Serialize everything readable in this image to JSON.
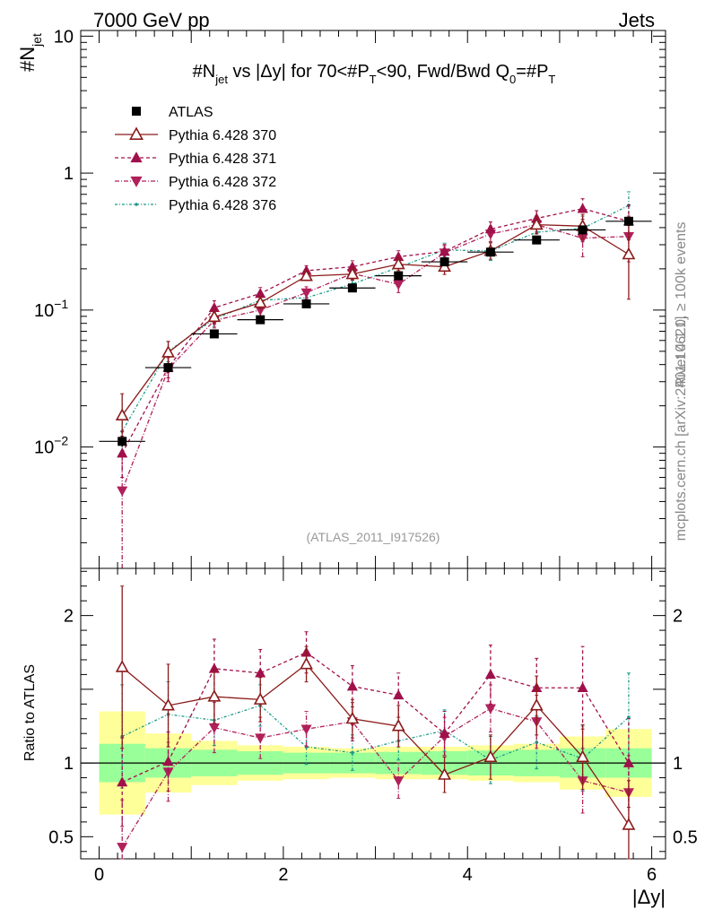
{
  "header": {
    "left": "7000 GeV pp",
    "right": "Jets"
  },
  "side_labels": {
    "rivet": "Rivet 4.1.0, ≥ 100k events",
    "mcplots": "mcplots.cern.ch [arXiv:2401.10621]"
  },
  "watermark": "(ATLAS_2011_I917526)",
  "colors": {
    "atlas": "#000000",
    "p370": "#8b1a1a",
    "p371": "#a0104a",
    "p372": "#b0205a",
    "p376": "#1a9a8a",
    "band_inner": "#99ff99",
    "band_outer": "#ffff99"
  },
  "chart_data": [
    {
      "type": "scatter",
      "title": "#N_jet vs |Δy| for 70<#P_T<90, Fwd/Bwd Q0=#P_T",
      "title_parts": {
        "n": "#N",
        "n_sub": "jet",
        "mid": " vs |Δy| for 70<#",
        "p": "P",
        "p_sub": "T",
        "tail": "<90, Fwd/Bwd Q",
        "q_sub": "0",
        "eq": "=#",
        "p2": "P",
        "p2_sub": "T"
      },
      "ylabel": "#N_jet",
      "ylabel_parts": {
        "main": "#N",
        "sub": "jet"
      },
      "yscale": "log",
      "ylim": [
        0.0013,
        11
      ],
      "xlim": [
        -0.2,
        6.15
      ],
      "y_ticks": [
        {
          "v": 10,
          "label": "10"
        },
        {
          "v": 1,
          "label": "1"
        },
        {
          "v": 0.1,
          "label": "10",
          "exp": "−1"
        },
        {
          "v": 0.01,
          "label": "10",
          "exp": "−2"
        }
      ],
      "x": [
        0.25,
        0.75,
        1.25,
        1.75,
        2.25,
        2.75,
        3.25,
        3.75,
        4.25,
        4.75,
        5.25,
        5.75
      ],
      "xerr": 0.25,
      "legend_position": "top-left",
      "series": [
        {
          "name": "ATLAS",
          "key": "atlas",
          "marker": "square",
          "dash": "none",
          "values": [
            0.011,
            0.038,
            0.067,
            0.085,
            0.111,
            0.145,
            0.178,
            0.225,
            0.265,
            0.325,
            0.385,
            0.445
          ],
          "err_lo": [
            0.001,
            0.003,
            0.004,
            0.005,
            0.006,
            0.007,
            0.009,
            0.011,
            0.013,
            0.016,
            0.02,
            0.025
          ],
          "err_hi": [
            0.001,
            0.003,
            0.004,
            0.005,
            0.006,
            0.007,
            0.009,
            0.011,
            0.013,
            0.016,
            0.02,
            0.025
          ]
        },
        {
          "name": "Pythia 6.428 370",
          "key": "p370",
          "marker": "triangle-up-open",
          "dash": "none",
          "values": [
            0.017,
            0.049,
            0.089,
            0.113,
            0.177,
            0.183,
            0.216,
            0.207,
            0.27,
            0.42,
            0.41,
            0.255
          ],
          "err_lo": [
            0.005,
            0.009,
            0.01,
            0.011,
            0.013,
            0.018,
            0.022,
            0.025,
            0.035,
            0.06,
            0.08,
            0.135
          ],
          "err_hi": [
            0.0075,
            0.01,
            0.011,
            0.012,
            0.014,
            0.02,
            0.024,
            0.028,
            0.04,
            0.065,
            0.09,
            0.16
          ]
        },
        {
          "name": "Pythia 6.428 371",
          "key": "p371",
          "marker": "triangle-up",
          "dash": "4,3",
          "values": [
            0.009,
            0.038,
            0.104,
            0.132,
            0.194,
            0.207,
            0.245,
            0.268,
            0.39,
            0.467,
            0.55,
            0.445
          ],
          "err_lo": [
            0.003,
            0.006,
            0.012,
            0.013,
            0.016,
            0.02,
            0.024,
            0.03,
            0.045,
            0.06,
            0.09,
            0.12
          ],
          "err_hi": [
            0.004,
            0.007,
            0.013,
            0.014,
            0.017,
            0.022,
            0.026,
            0.033,
            0.05,
            0.065,
            0.1,
            0.14
          ]
        },
        {
          "name": "Pythia 6.428 372",
          "key": "p372",
          "marker": "triangle-down",
          "dash": "5,2,1,2",
          "values": [
            0.0048,
            0.037,
            0.084,
            0.1,
            0.134,
            0.185,
            0.154,
            0.262,
            0.36,
            0.42,
            0.335,
            0.345
          ],
          "err_lo": [
            0.0035,
            0.007,
            0.01,
            0.011,
            0.013,
            0.018,
            0.02,
            0.03,
            0.045,
            0.06,
            0.09,
            0.12
          ],
          "err_hi": [
            0.004,
            0.008,
            0.011,
            0.012,
            0.014,
            0.02,
            0.022,
            0.033,
            0.05,
            0.065,
            0.1,
            0.14
          ]
        },
        {
          "name": "Pythia 6.428 376",
          "key": "p376",
          "marker": "dot",
          "dash": "3,2,1,2",
          "values": [
            0.013,
            0.05,
            0.086,
            0.118,
            0.123,
            0.155,
            0.205,
            0.275,
            0.27,
            0.37,
            0.395,
            0.58
          ],
          "err_lo": [
            0.004,
            0.008,
            0.01,
            0.011,
            0.012,
            0.016,
            0.022,
            0.03,
            0.04,
            0.055,
            0.08,
            0.13
          ],
          "err_hi": [
            0.005,
            0.009,
            0.011,
            0.012,
            0.013,
            0.018,
            0.024,
            0.033,
            0.045,
            0.06,
            0.09,
            0.15
          ]
        }
      ]
    },
    {
      "type": "scatter",
      "title": "",
      "ylabel": "Ratio to ATLAS",
      "xlabel": "|Δy|",
      "yscale": "linear",
      "ylim": [
        0.35,
        2.32
      ],
      "xlim": [
        -0.2,
        6.15
      ],
      "y_ticks": [
        {
          "v": 2,
          "label": "2"
        },
        {
          "v": 1.5,
          "label": ""
        },
        {
          "v": 1,
          "label": "1"
        },
        {
          "v": 0.5,
          "label": "0.5"
        }
      ],
      "x_ticks": [
        {
          "v": 0,
          "label": "0"
        },
        {
          "v": 2,
          "label": "2"
        },
        {
          "v": 4,
          "label": "4"
        },
        {
          "v": 6,
          "label": "6"
        }
      ],
      "x": [
        0.25,
        0.75,
        1.25,
        1.75,
        2.25,
        2.75,
        3.25,
        3.75,
        4.25,
        4.75,
        5.25,
        5.75
      ],
      "xerr": 0.25,
      "bands": {
        "inner": [
          0.13,
          0.1,
          0.09,
          0.08,
          0.07,
          0.07,
          0.075,
          0.08,
          0.085,
          0.09,
          0.1,
          0.1
        ],
        "outer": [
          0.35,
          0.2,
          0.15,
          0.12,
          0.11,
          0.1,
          0.11,
          0.11,
          0.12,
          0.13,
          0.18,
          0.23
        ]
      },
      "series": [
        {
          "name": "Pythia 6.428 370",
          "key": "p370",
          "marker": "triangle-up-open",
          "dash": "none",
          "values": [
            1.65,
            1.39,
            1.45,
            1.43,
            1.67,
            1.3,
            1.25,
            0.92,
            1.04,
            1.39,
            1.04,
            0.58
          ],
          "err_lo": [
            0.55,
            0.28,
            0.18,
            0.15,
            0.12,
            0.13,
            0.14,
            0.12,
            0.15,
            0.2,
            0.22,
            0.3
          ],
          "err_hi": [
            0.55,
            0.28,
            0.18,
            0.15,
            0.12,
            0.13,
            0.14,
            0.12,
            0.15,
            0.2,
            0.22,
            0.3
          ]
        },
        {
          "name": "Pythia 6.428 371",
          "key": "p371",
          "marker": "triangle-up",
          "dash": "4,3",
          "values": [
            0.87,
            1.01,
            1.64,
            1.61,
            1.75,
            1.52,
            1.46,
            1.2,
            1.6,
            1.51,
            1.51,
            1.0
          ],
          "err_lo": [
            0.3,
            0.2,
            0.2,
            0.16,
            0.14,
            0.14,
            0.15,
            0.15,
            0.2,
            0.2,
            0.28,
            0.3
          ],
          "err_hi": [
            0.3,
            0.2,
            0.2,
            0.16,
            0.14,
            0.14,
            0.15,
            0.15,
            0.2,
            0.2,
            0.28,
            0.3
          ]
        },
        {
          "name": "Pythia 6.428 372",
          "key": "p372",
          "marker": "triangle-down",
          "dash": "5,2,1,2",
          "values": [
            0.43,
            0.94,
            1.24,
            1.17,
            1.23,
            1.28,
            0.88,
            1.18,
            1.37,
            1.28,
            0.88,
            0.8
          ],
          "err_lo": [
            0.32,
            0.2,
            0.17,
            0.14,
            0.12,
            0.13,
            0.12,
            0.13,
            0.16,
            0.18,
            0.22,
            0.25
          ],
          "err_hi": [
            0.32,
            0.2,
            0.17,
            0.14,
            0.12,
            0.13,
            0.12,
            0.13,
            0.16,
            0.18,
            0.22,
            0.25
          ]
        },
        {
          "name": "Pythia 6.428 376",
          "key": "p376",
          "marker": "dot",
          "dash": "3,2,1,2",
          "values": [
            1.18,
            1.33,
            1.29,
            1.39,
            1.11,
            1.07,
            1.15,
            1.22,
            1.02,
            1.14,
            1.03,
            1.31
          ],
          "err_lo": [
            0.35,
            0.22,
            0.17,
            0.14,
            0.12,
            0.12,
            0.13,
            0.14,
            0.16,
            0.18,
            0.22,
            0.3
          ],
          "err_hi": [
            0.35,
            0.22,
            0.17,
            0.14,
            0.12,
            0.12,
            0.13,
            0.14,
            0.16,
            0.18,
            0.22,
            0.3
          ]
        }
      ]
    }
  ]
}
